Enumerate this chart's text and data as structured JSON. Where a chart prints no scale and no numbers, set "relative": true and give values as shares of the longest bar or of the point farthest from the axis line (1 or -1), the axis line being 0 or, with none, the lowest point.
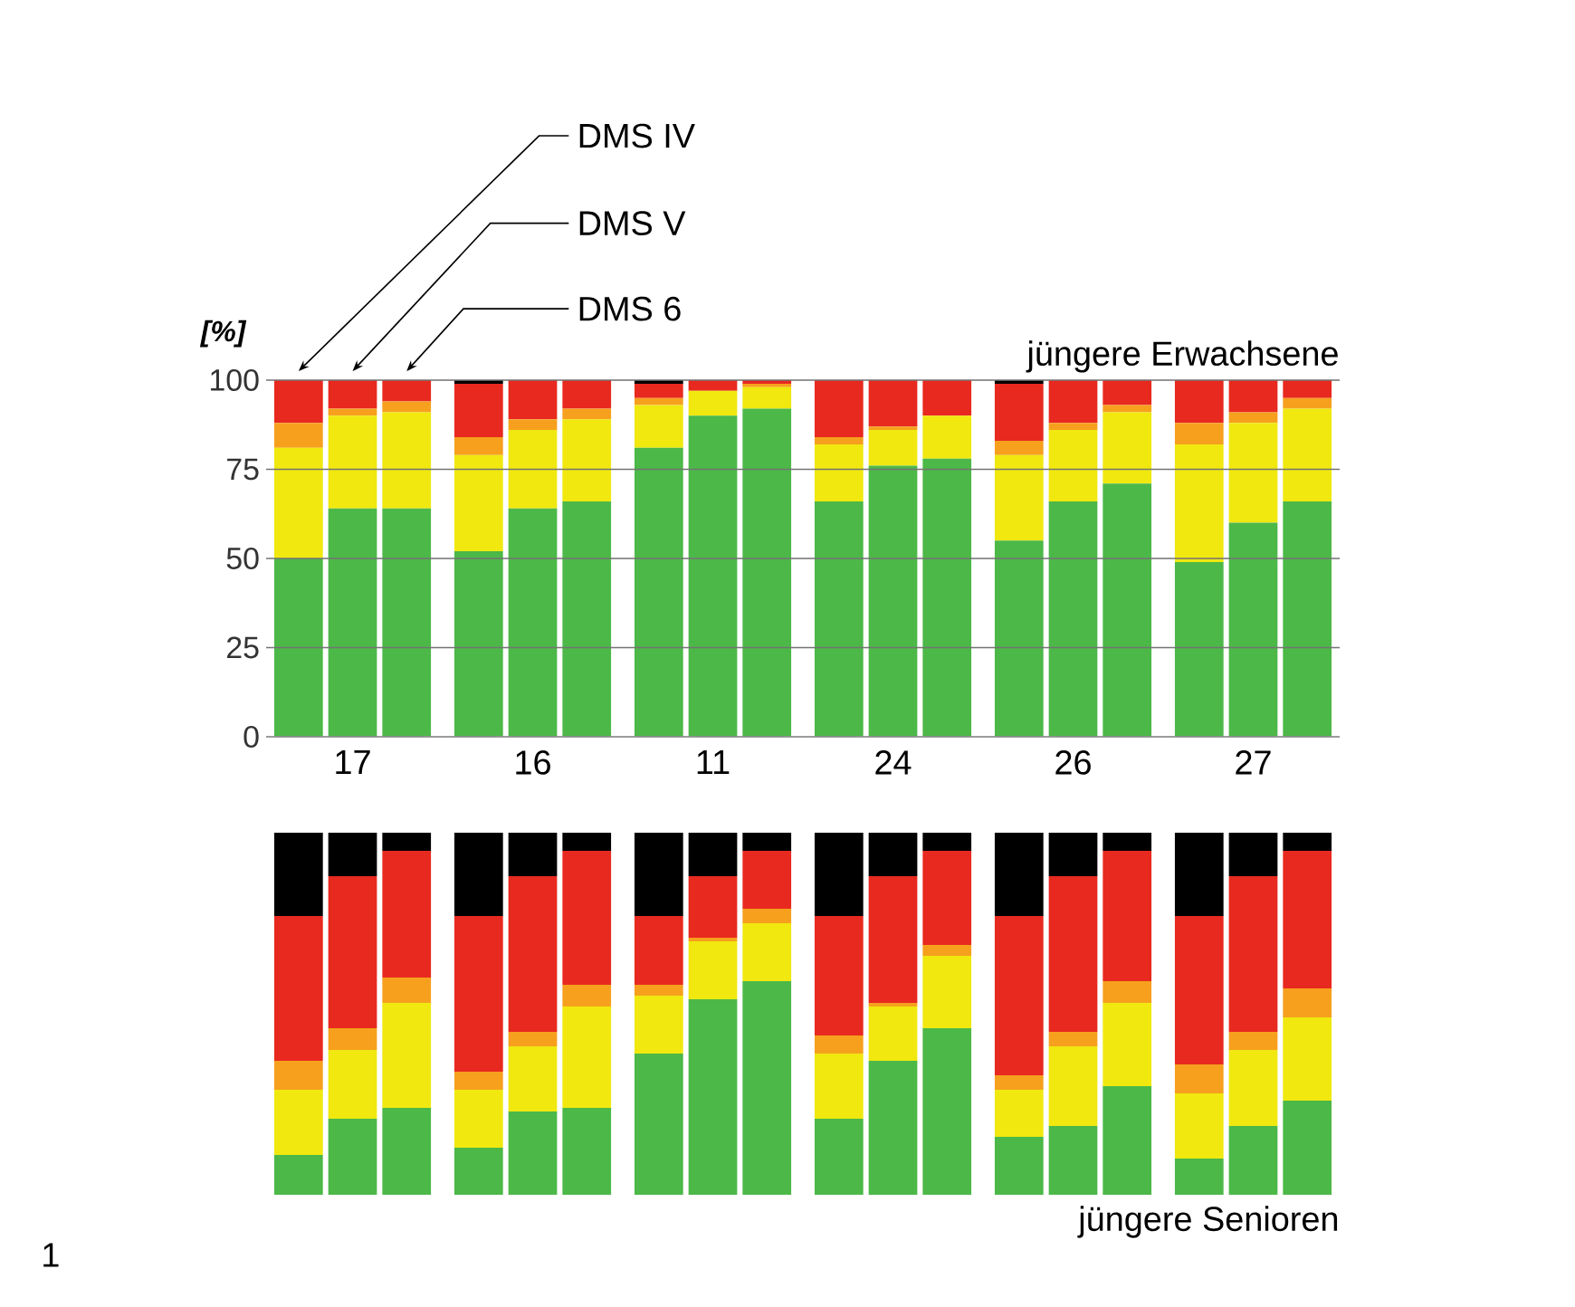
{
  "chart_data": [
    {
      "type": "bar",
      "stacked": true,
      "title": "jüngere Erwachsene",
      "ylabel": "[%]",
      "ylim": [
        0,
        100
      ],
      "yticks": [
        0,
        25,
        50,
        75,
        100
      ],
      "grid": "y",
      "categories": [
        null,
        "17",
        null,
        null,
        "16",
        null,
        null,
        "11",
        null,
        null,
        "24",
        null,
        null,
        "26",
        null,
        null,
        "27",
        null
      ],
      "annotations": [
        "DMS IV",
        "DMS V",
        "DMS 6"
      ],
      "series": [
        {
          "color": "#4cb848",
          "values": [
            50,
            64,
            64,
            52,
            64,
            66,
            81,
            90,
            92,
            66,
            76,
            78,
            55,
            66,
            71,
            49,
            60,
            66
          ]
        },
        {
          "color": "#f0e80f",
          "values": [
            31,
            26,
            27,
            27,
            22,
            23,
            12,
            7,
            6,
            16,
            10,
            12,
            24,
            20,
            20,
            33,
            28,
            26
          ]
        },
        {
          "color": "#f6a01e",
          "values": [
            7,
            2,
            3,
            5,
            3,
            3,
            2,
            0,
            1,
            2,
            1,
            0,
            4,
            2,
            2,
            6,
            3,
            3
          ]
        },
        {
          "color": "#e8291f",
          "values": [
            12,
            8,
            6,
            15,
            11,
            8,
            4,
            3,
            1,
            16,
            13,
            10,
            16,
            12,
            7,
            12,
            9,
            5
          ]
        },
        {
          "color": "#000000",
          "values": [
            0,
            0,
            0,
            1,
            0,
            0,
            1,
            0,
            0,
            0,
            0,
            0,
            1,
            0,
            0,
            0,
            0,
            0
          ]
        }
      ]
    },
    {
      "type": "bar",
      "stacked": true,
      "relative": true,
      "title": "jüngere Senioren",
      "categories": [
        null,
        null,
        null,
        null,
        null,
        null,
        null,
        null,
        null,
        null,
        null,
        null,
        null,
        null,
        null,
        null,
        null,
        null
      ],
      "annotations": [
        "1"
      ],
      "series": [
        {
          "color": "#4cb848",
          "values": [
            0.11,
            0.21,
            0.24,
            0.13,
            0.23,
            0.24,
            0.39,
            0.54,
            0.59,
            0.21,
            0.37,
            0.46,
            0.16,
            0.19,
            0.3,
            0.1,
            0.19,
            0.26
          ]
        },
        {
          "color": "#f0e80f",
          "values": [
            0.18,
            0.19,
            0.29,
            0.16,
            0.18,
            0.28,
            0.16,
            0.16,
            0.16,
            0.18,
            0.15,
            0.2,
            0.13,
            0.22,
            0.23,
            0.18,
            0.21,
            0.23
          ]
        },
        {
          "color": "#f6a01e",
          "values": [
            0.08,
            0.06,
            0.07,
            0.05,
            0.04,
            0.06,
            0.03,
            0.01,
            0.04,
            0.05,
            0.01,
            0.03,
            0.04,
            0.04,
            0.06,
            0.08,
            0.05,
            0.08
          ]
        },
        {
          "color": "#e8291f",
          "values": [
            0.4,
            0.42,
            0.35,
            0.43,
            0.43,
            0.37,
            0.19,
            0.17,
            0.16,
            0.33,
            0.35,
            0.26,
            0.44,
            0.43,
            0.36,
            0.41,
            0.43,
            0.38
          ]
        },
        {
          "color": "#000000",
          "values": [
            0.23,
            0.12,
            0.05,
            0.23,
            0.12,
            0.05,
            0.23,
            0.12,
            0.05,
            0.23,
            0.12,
            0.05,
            0.23,
            0.12,
            0.05,
            0.23,
            0.12,
            0.05
          ]
        }
      ]
    }
  ]
}
